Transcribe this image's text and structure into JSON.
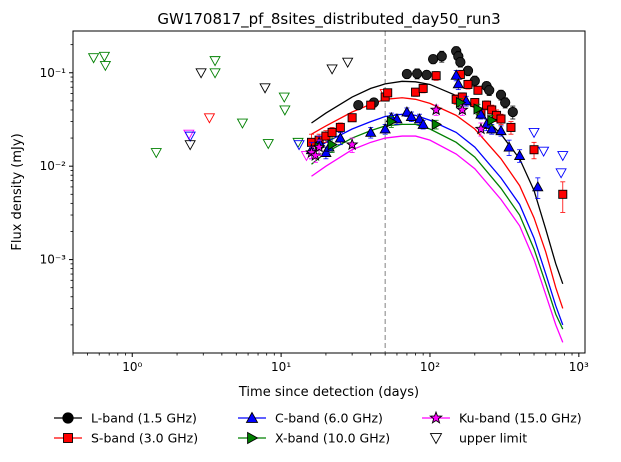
{
  "chart_data": {
    "type": "scatter",
    "title": "GW170817_pf_8sites_distributed_day50_run3",
    "xlabel": "Time since detection (days)",
    "ylabel": "Flux density (mJy)",
    "xscale": "log",
    "yscale": "log",
    "xlim": [
      0.4,
      1100
    ],
    "ylim": [
      0.0001,
      0.28
    ],
    "x_ticks": [
      {
        "value": 1,
        "label": "10⁰"
      },
      {
        "value": 10,
        "label": "10¹"
      },
      {
        "value": 100,
        "label": "10²"
      },
      {
        "value": 1000,
        "label": "10³"
      }
    ],
    "y_ticks": [
      {
        "value": 0.001,
        "label": "10⁻³"
      },
      {
        "value": 0.01,
        "label": "10⁻²"
      },
      {
        "value": 0.1,
        "label": "10⁻¹"
      }
    ],
    "vline": {
      "x": 50,
      "style": "dashed",
      "color": "#808080"
    },
    "grid": false,
    "legend_position": "bottom",
    "series": [
      {
        "name": "L-band (1.5 GHz)",
        "color": "#000000",
        "marker": "circle",
        "model": [
          [
            16,
            0.029
          ],
          [
            20,
            0.037
          ],
          [
            30,
            0.055
          ],
          [
            40,
            0.068
          ],
          [
            50,
            0.076
          ],
          [
            65,
            0.081
          ],
          [
            80,
            0.08
          ],
          [
            100,
            0.075
          ],
          [
            150,
            0.057
          ],
          [
            200,
            0.042
          ],
          [
            300,
            0.022
          ],
          [
            400,
            0.012
          ],
          [
            500,
            0.0055
          ],
          [
            600,
            0.0021
          ],
          [
            700,
            0.0009
          ],
          [
            780,
            0.00055
          ]
        ],
        "points": [
          [
            33,
            0.045,
            0.004
          ],
          [
            42,
            0.048,
            0.005
          ],
          [
            70,
            0.097,
            0.01
          ],
          [
            82,
            0.098,
            0.012
          ],
          [
            95,
            0.095,
            0.01
          ],
          [
            105,
            0.14,
            0.015
          ],
          [
            120,
            0.15,
            0.02
          ],
          [
            150,
            0.17,
            0.02
          ],
          [
            155,
            0.15,
            0.02
          ],
          [
            160,
            0.13,
            0.015
          ],
          [
            180,
            0.105,
            0.012
          ],
          [
            200,
            0.082,
            0.01
          ],
          [
            240,
            0.072,
            0.008
          ],
          [
            250,
            0.065,
            0.008
          ],
          [
            300,
            0.058,
            0.007
          ],
          [
            320,
            0.048,
            0.006
          ],
          [
            360,
            0.038,
            0.006
          ]
        ]
      },
      {
        "name": "S-band (3.0 GHz)",
        "color": "#ff0000",
        "marker": "square",
        "model": [
          [
            16,
            0.022
          ],
          [
            20,
            0.027
          ],
          [
            30,
            0.038
          ],
          [
            40,
            0.046
          ],
          [
            50,
            0.052
          ],
          [
            65,
            0.054
          ],
          [
            80,
            0.052
          ],
          [
            100,
            0.047
          ],
          [
            150,
            0.035
          ],
          [
            200,
            0.025
          ],
          [
            300,
            0.012
          ],
          [
            400,
            0.0062
          ],
          [
            500,
            0.0028
          ],
          [
            600,
            0.0012
          ],
          [
            700,
            0.0005
          ],
          [
            780,
            0.0003
          ]
        ],
        "points": [
          [
            16,
            0.018,
            0.004
          ],
          [
            18,
            0.019,
            0.003
          ],
          [
            20,
            0.021,
            0.003
          ],
          [
            22,
            0.023,
            0.003
          ],
          [
            25,
            0.026,
            0.003
          ],
          [
            30,
            0.033,
            0.003
          ],
          [
            40,
            0.045,
            0.004
          ],
          [
            50,
            0.055,
            0.005
          ],
          [
            52,
            0.061,
            0.006
          ],
          [
            80,
            0.062,
            0.006
          ],
          [
            90,
            0.068,
            0.007
          ],
          [
            110,
            0.093,
            0.01
          ],
          [
            150,
            0.052,
            0.006
          ],
          [
            160,
            0.096,
            0.01
          ],
          [
            165,
            0.055,
            0.006
          ],
          [
            180,
            0.075,
            0.008
          ],
          [
            200,
            0.048,
            0.005
          ],
          [
            210,
            0.065,
            0.006
          ],
          [
            220,
            0.038,
            0.004
          ],
          [
            240,
            0.045,
            0.005
          ],
          [
            260,
            0.04,
            0.005
          ],
          [
            280,
            0.035,
            0.005
          ],
          [
            300,
            0.032,
            0.004
          ],
          [
            350,
            0.026,
            0.004
          ],
          [
            500,
            0.015,
            0.003
          ],
          [
            780,
            0.005,
            0.0018
          ]
        ]
      },
      {
        "name": "C-band (6.0 GHz)",
        "color": "#0000ff",
        "marker": "triangle-up",
        "model": [
          [
            16,
            0.014
          ],
          [
            20,
            0.018
          ],
          [
            30,
            0.025
          ],
          [
            40,
            0.03
          ],
          [
            50,
            0.034
          ],
          [
            65,
            0.036
          ],
          [
            80,
            0.035
          ],
          [
            100,
            0.031
          ],
          [
            150,
            0.023
          ],
          [
            200,
            0.016
          ],
          [
            300,
            0.0075
          ],
          [
            400,
            0.0039
          ],
          [
            500,
            0.0017
          ],
          [
            600,
            0.0007
          ],
          [
            700,
            0.00032
          ],
          [
            780,
            0.0002
          ]
        ],
        "points": [
          [
            16,
            0.015,
            0.003
          ],
          [
            18,
            0.018,
            0.003
          ],
          [
            20,
            0.014,
            0.002
          ],
          [
            21,
            0.016,
            0.002
          ],
          [
            25,
            0.02,
            0.003
          ],
          [
            40,
            0.023,
            0.003
          ],
          [
            50,
            0.025,
            0.003
          ],
          [
            55,
            0.033,
            0.004
          ],
          [
            60,
            0.032,
            0.004
          ],
          [
            70,
            0.038,
            0.004
          ],
          [
            75,
            0.034,
            0.004
          ],
          [
            85,
            0.032,
            0.004
          ],
          [
            90,
            0.028,
            0.003
          ],
          [
            150,
            0.094,
            0.012
          ],
          [
            155,
            0.076,
            0.01
          ],
          [
            175,
            0.05,
            0.006
          ],
          [
            220,
            0.036,
            0.004
          ],
          [
            240,
            0.028,
            0.004
          ],
          [
            260,
            0.025,
            0.003
          ],
          [
            300,
            0.024,
            0.003
          ],
          [
            340,
            0.016,
            0.003
          ],
          [
            400,
            0.013,
            0.002
          ],
          [
            530,
            0.006,
            0.0015
          ]
        ]
      },
      {
        "name": "X-band (10.0 GHz)",
        "color": "#008000",
        "marker": "triangle-right",
        "model": [
          [
            16,
            0.0105
          ],
          [
            20,
            0.014
          ],
          [
            30,
            0.02
          ],
          [
            40,
            0.024
          ],
          [
            50,
            0.027
          ],
          [
            65,
            0.028
          ],
          [
            80,
            0.028
          ],
          [
            100,
            0.025
          ],
          [
            150,
            0.018
          ],
          [
            200,
            0.0125
          ],
          [
            300,
            0.0058
          ],
          [
            400,
            0.003
          ],
          [
            500,
            0.0013
          ],
          [
            600,
            0.00055
          ],
          [
            700,
            0.00026
          ],
          [
            780,
            0.00018
          ]
        ],
        "points": [
          [
            18,
            0.016,
            0.003
          ],
          [
            22,
            0.017,
            0.003
          ],
          [
            55,
            0.03,
            0.004
          ],
          [
            110,
            0.028,
            0.003
          ],
          [
            160,
            0.048,
            0.005
          ],
          [
            210,
            0.041,
            0.005
          ],
          [
            260,
            0.031,
            0.004
          ]
        ]
      },
      {
        "name": "Ku-band (15.0 GHz)",
        "color": "#ff00ff",
        "marker": "star",
        "model": [
          [
            16,
            0.0078
          ],
          [
            20,
            0.01
          ],
          [
            30,
            0.015
          ],
          [
            40,
            0.018
          ],
          [
            50,
            0.02
          ],
          [
            65,
            0.021
          ],
          [
            80,
            0.021
          ],
          [
            100,
            0.019
          ],
          [
            150,
            0.0135
          ],
          [
            200,
            0.0094
          ],
          [
            300,
            0.0044
          ],
          [
            400,
            0.0023
          ],
          [
            500,
            0.001
          ],
          [
            600,
            0.00042
          ],
          [
            700,
            0.0002
          ],
          [
            780,
            0.00013
          ]
        ],
        "points": [
          [
            16,
            0.014,
            0.002
          ],
          [
            17,
            0.013,
            0.002
          ],
          [
            18,
            0.016,
            0.003
          ],
          [
            30,
            0.017,
            0.003
          ],
          [
            110,
            0.04,
            0.005
          ],
          [
            165,
            0.04,
            0.005
          ],
          [
            220,
            0.025,
            0.004
          ]
        ]
      }
    ],
    "upper_limits": [
      {
        "x": 0.55,
        "y": 0.145,
        "color": "#008000"
      },
      {
        "x": 0.65,
        "y": 0.15,
        "color": "#008000"
      },
      {
        "x": 0.66,
        "y": 0.12,
        "color": "#008000"
      },
      {
        "x": 1.45,
        "y": 0.014,
        "color": "#008000"
      },
      {
        "x": 2.4,
        "y": 0.022,
        "color": "#ff00ff"
      },
      {
        "x": 2.45,
        "y": 0.021,
        "color": "#0000ff"
      },
      {
        "x": 2.45,
        "y": 0.017,
        "color": "#000000"
      },
      {
        "x": 2.9,
        "y": 0.1,
        "color": "#000000"
      },
      {
        "x": 3.3,
        "y": 0.033,
        "color": "#ff0000"
      },
      {
        "x": 3.6,
        "y": 0.135,
        "color": "#008000"
      },
      {
        "x": 3.6,
        "y": 0.1,
        "color": "#008000"
      },
      {
        "x": 5.5,
        "y": 0.029,
        "color": "#008000"
      },
      {
        "x": 7.8,
        "y": 0.069,
        "color": "#000000"
      },
      {
        "x": 8.2,
        "y": 0.0175,
        "color": "#008000"
      },
      {
        "x": 10.5,
        "y": 0.055,
        "color": "#008000"
      },
      {
        "x": 10.6,
        "y": 0.04,
        "color": "#008000"
      },
      {
        "x": 13.0,
        "y": 0.018,
        "color": "#008000"
      },
      {
        "x": 13.2,
        "y": 0.017,
        "color": "#0000ff"
      },
      {
        "x": 14.8,
        "y": 0.013,
        "color": "#ff00ff"
      },
      {
        "x": 22.0,
        "y": 0.11,
        "color": "#000000"
      },
      {
        "x": 28.0,
        "y": 0.13,
        "color": "#000000"
      },
      {
        "x": 50.0,
        "y": 0.06,
        "color": "#ff0000"
      },
      {
        "x": 500.0,
        "y": 0.023,
        "color": "#0000ff"
      },
      {
        "x": 580.0,
        "y": 0.0145,
        "color": "#0000ff"
      },
      {
        "x": 780.0,
        "y": 0.013,
        "color": "#0000ff"
      },
      {
        "x": 760.0,
        "y": 0.0085,
        "color": "#0000ff"
      }
    ],
    "legend": [
      {
        "label": "L-band (1.5 GHz)",
        "color": "#000000",
        "marker": "circle",
        "line": true
      },
      {
        "label": "S-band (3.0 GHz)",
        "color": "#ff0000",
        "marker": "square",
        "line": true
      },
      {
        "label": "C-band (6.0 GHz)",
        "color": "#0000ff",
        "marker": "triangle-up",
        "line": true
      },
      {
        "label": "X-band (10.0 GHz)",
        "color": "#008000",
        "marker": "triangle-right",
        "line": true
      },
      {
        "label": "Ku-band (15.0 GHz)",
        "color": "#ff00ff",
        "marker": "star",
        "line": true
      },
      {
        "label": "upper limit",
        "color": "#000000",
        "marker": "triangle-down-open",
        "line": false
      }
    ]
  }
}
